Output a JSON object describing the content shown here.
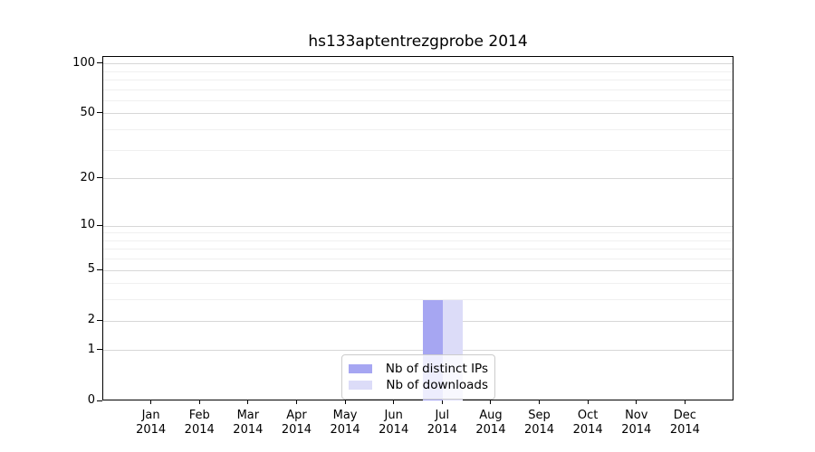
{
  "chart_data": {
    "type": "bar",
    "title": "hs133aptentrezgprobe 2014",
    "xlabel": "",
    "ylabel": "",
    "categories": [
      "Jan 2014",
      "Feb 2014",
      "Mar 2014",
      "Apr 2014",
      "May 2014",
      "Jun 2014",
      "Jul 2014",
      "Aug 2014",
      "Sep 2014",
      "Oct 2014",
      "Nov 2014",
      "Dec 2014"
    ],
    "series": [
      {
        "name": "Nb of distinct IPs",
        "color": "#a6a6f2",
        "values": [
          0,
          0,
          0,
          0,
          0,
          0,
          3,
          0,
          0,
          0,
          0,
          0
        ]
      },
      {
        "name": "Nb of downloads",
        "color": "#dcdcf8",
        "values": [
          0,
          0,
          0,
          0,
          0,
          0,
          3,
          0,
          0,
          0,
          0,
          0
        ]
      }
    ],
    "yscale": "log1p",
    "ylim": [
      0,
      110
    ],
    "yticks": [
      0,
      1,
      2,
      5,
      10,
      20,
      50,
      100
    ],
    "minor_yticks": [
      3,
      4,
      6,
      7,
      8,
      9,
      30,
      40,
      60,
      70,
      80,
      90
    ],
    "grid": "horizontal",
    "legend_position": "bottom-center-inside"
  }
}
